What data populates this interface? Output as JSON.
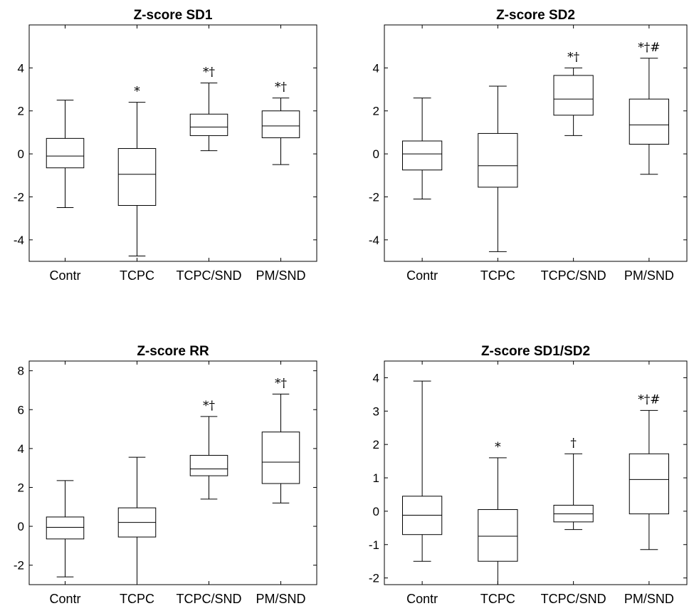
{
  "chart_data": [
    {
      "type": "box",
      "title": "Z-score SD1",
      "categories": [
        "Contr",
        "TCPC",
        "TCPC/SND",
        "PM/SND"
      ],
      "ylim": [
        -5,
        6
      ],
      "yticks": [
        -4,
        -2,
        0,
        2,
        4
      ],
      "tick_labels": [
        "-4",
        "-2",
        "0",
        "2",
        "4"
      ],
      "boxes": [
        {
          "min": -2.5,
          "q1": -0.65,
          "median": -0.1,
          "q3": 0.72,
          "max": 2.5,
          "annotation": ""
        },
        {
          "min": -4.75,
          "q1": -2.4,
          "median": -0.95,
          "q3": 0.25,
          "max": 2.4,
          "annotation": "*"
        },
        {
          "min": 0.15,
          "q1": 0.85,
          "median": 1.25,
          "q3": 1.85,
          "max": 3.3,
          "annotation": "*†"
        },
        {
          "min": -0.5,
          "q1": 0.75,
          "median": 1.3,
          "q3": 2.0,
          "max": 2.6,
          "annotation": "*†"
        }
      ]
    },
    {
      "type": "box",
      "title": "Z-score SD2",
      "categories": [
        "Contr",
        "TCPC",
        "TCPC/SND",
        "PM/SND"
      ],
      "ylim": [
        -5,
        6
      ],
      "yticks": [
        -4,
        -2,
        0,
        2,
        4
      ],
      "tick_labels": [
        "-4",
        "-2",
        "0",
        "2",
        "4"
      ],
      "boxes": [
        {
          "min": -2.1,
          "q1": -0.75,
          "median": 0.0,
          "q3": 0.6,
          "max": 2.6,
          "annotation": ""
        },
        {
          "min": -4.55,
          "q1": -1.55,
          "median": -0.55,
          "q3": 0.95,
          "max": 3.15,
          "annotation": ""
        },
        {
          "min": 0.85,
          "q1": 1.8,
          "median": 2.55,
          "q3": 3.65,
          "max": 4.0,
          "annotation": "*†"
        },
        {
          "min": -0.95,
          "q1": 0.45,
          "median": 1.35,
          "q3": 2.55,
          "max": 4.45,
          "annotation": "*†#"
        }
      ]
    },
    {
      "type": "box",
      "title": "Z-score RR",
      "categories": [
        "Contr",
        "TCPC",
        "TCPC/SND",
        "PM/SND"
      ],
      "ylim": [
        -3,
        8.5
      ],
      "yticks": [
        -2,
        0,
        2,
        4,
        6,
        8
      ],
      "tick_labels": [
        "-2",
        "0",
        "2",
        "4",
        "6",
        "8"
      ],
      "boxes": [
        {
          "min": -2.6,
          "q1": -0.65,
          "median": -0.05,
          "q3": 0.48,
          "max": 2.35,
          "annotation": ""
        },
        {
          "min": -3.0,
          "q1": -0.55,
          "median": 0.2,
          "q3": 0.95,
          "max": 3.55,
          "annotation": ""
        },
        {
          "min": 1.4,
          "q1": 2.6,
          "median": 2.95,
          "q3": 3.65,
          "max": 5.65,
          "annotation": "*†"
        },
        {
          "min": 1.2,
          "q1": 2.2,
          "median": 3.3,
          "q3": 4.85,
          "max": 6.8,
          "annotation": "*†"
        }
      ]
    },
    {
      "type": "box",
      "title": "Z-score SD1/SD2",
      "categories": [
        "Contr",
        "TCPC",
        "TCPC/SND",
        "PM/SND"
      ],
      "ylim": [
        -2.2,
        4.5
      ],
      "yticks": [
        -2,
        -1,
        0,
        1,
        2,
        3,
        4
      ],
      "tick_labels": [
        "-2",
        "-1",
        "0",
        "1",
        "2",
        "3",
        "4"
      ],
      "boxes": [
        {
          "min": -1.5,
          "q1": -0.7,
          "median": -0.12,
          "q3": 0.45,
          "max": 3.9,
          "annotation": ""
        },
        {
          "min": -2.2,
          "q1": -1.5,
          "median": -0.75,
          "q3": 0.05,
          "max": 1.6,
          "annotation": "*"
        },
        {
          "min": -0.55,
          "q1": -0.32,
          "median": -0.08,
          "q3": 0.18,
          "max": 1.72,
          "annotation": "†"
        },
        {
          "min": -1.15,
          "q1": -0.08,
          "median": 0.95,
          "q3": 1.72,
          "max": 3.02,
          "annotation": "*†#"
        }
      ]
    }
  ]
}
